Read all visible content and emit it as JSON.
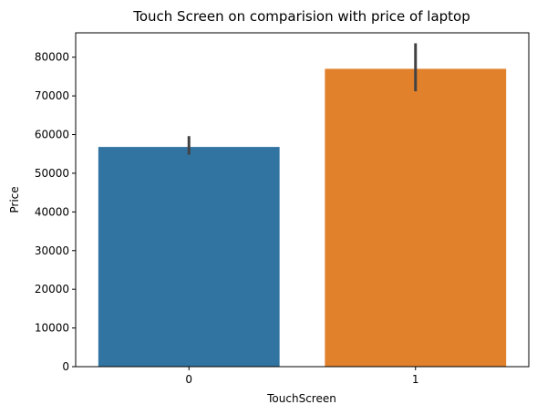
{
  "chart_data": {
    "type": "bar",
    "title": "Touch Screen on comparision with price of laptop",
    "xlabel": "TouchScreen",
    "ylabel": "Price",
    "categories": [
      "0",
      "1"
    ],
    "values": [
      56800,
      77000
    ],
    "error_bars": [
      [
        54800,
        59600
      ],
      [
        71200,
        83600
      ]
    ],
    "colors": [
      "#3274a1",
      "#e1812c"
    ],
    "error_color": "#424242",
    "ylim": [
      0,
      86300
    ],
    "yticks": [
      0,
      10000,
      20000,
      30000,
      40000,
      50000,
      60000,
      70000,
      80000
    ],
    "grid": false
  }
}
